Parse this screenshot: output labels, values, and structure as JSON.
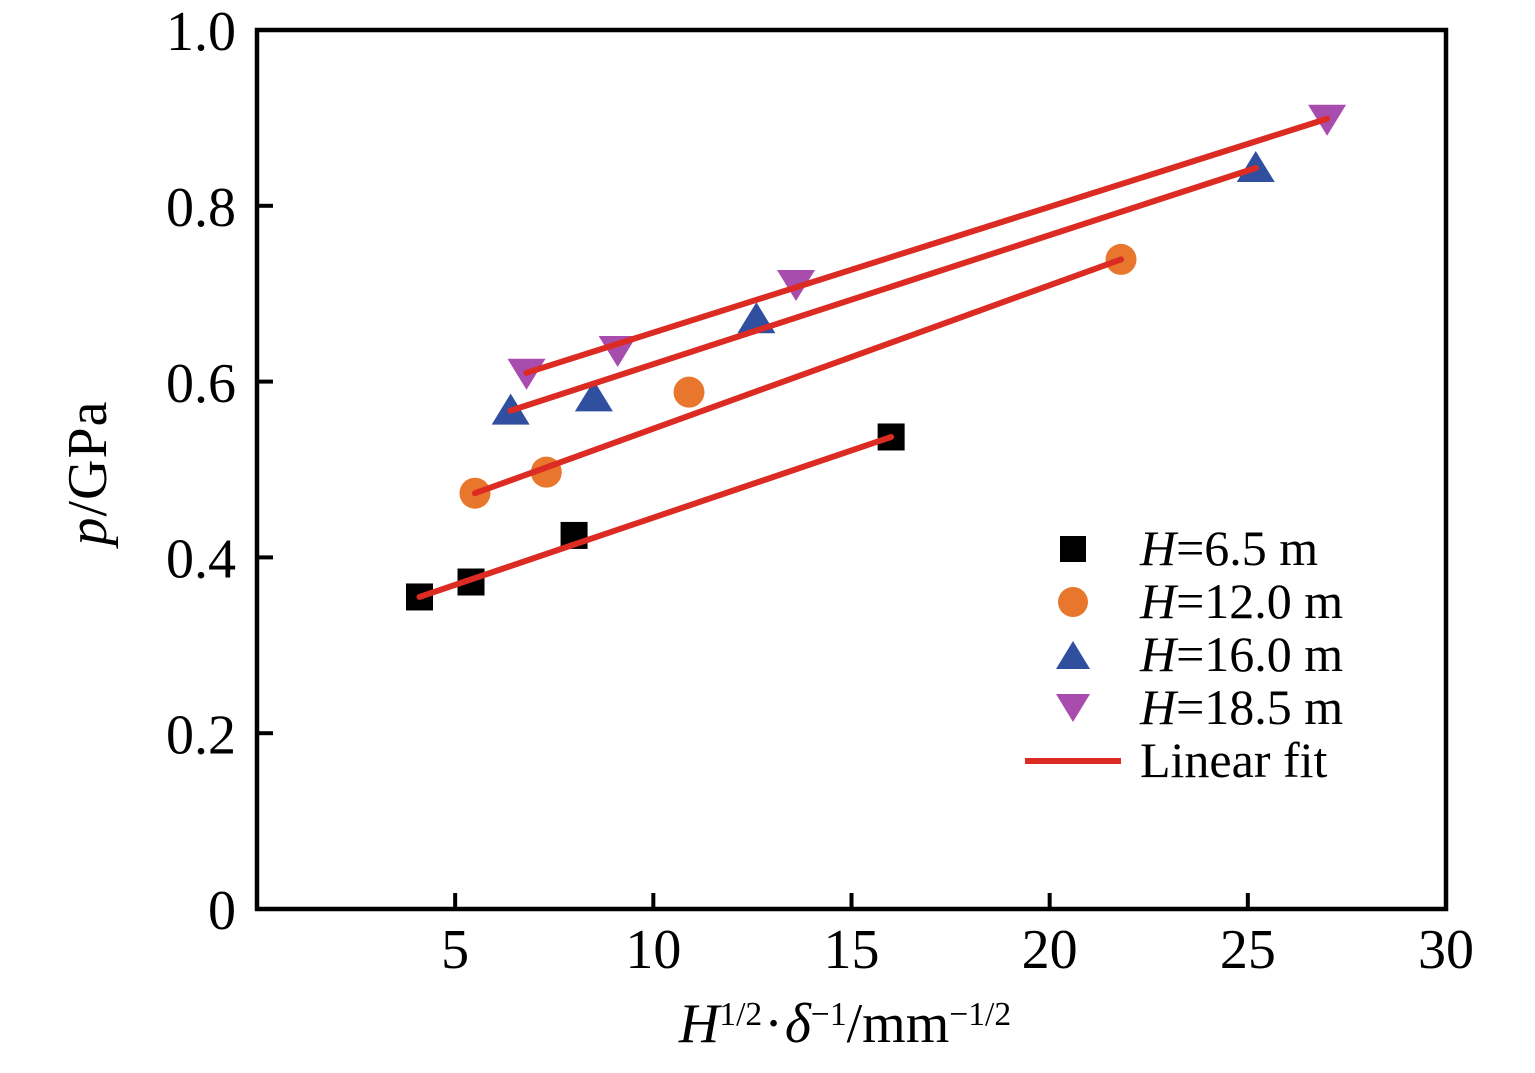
{
  "figure": {
    "background": "#ffffff",
    "frame_color": "#000000"
  },
  "axes": {
    "y_label": {
      "var": "p",
      "rest": "/GPa"
    },
    "x_label": {
      "p1": "H",
      "p2": "1/2",
      "p3": "·",
      "p4": "δ",
      "p5": "−1",
      "p6": "/mm",
      "p7": "−1/2"
    }
  },
  "legend": {
    "entries": [
      {
        "var": "H",
        "rest": "=6.5 m",
        "marker": "square",
        "color": "#000000"
      },
      {
        "var": "H",
        "rest": "=12.0 m",
        "marker": "circle",
        "color": "#E8762C"
      },
      {
        "var": "H",
        "rest": "=16.0 m",
        "marker": "triangle-up",
        "color": "#30509F"
      },
      {
        "var": "H",
        "rest": "=18.5 m",
        "marker": "triangle-down",
        "color": "#A84CAE"
      },
      {
        "var": "",
        "rest": "Linear fit",
        "marker": "line",
        "color": "#DC2B23"
      }
    ]
  },
  "chart_data": {
    "type": "scatter",
    "title": "",
    "xlabel": "H^{1/2}·δ^{−1}/mm^{−1/2}",
    "ylabel": "p/GPa",
    "xlim": [
      0,
      30
    ],
    "ylim": [
      0,
      1.0
    ],
    "x_ticks": [
      5,
      10,
      15,
      20,
      25,
      30
    ],
    "y_ticks": [
      0,
      0.2,
      0.4,
      0.6,
      0.8,
      1.0
    ],
    "y_tick_labels": [
      "0",
      "0.2",
      "0.4",
      "0.6",
      "0.8",
      "1.0"
    ],
    "grid": false,
    "legend_position": "inside lower right",
    "fit_color": "#DC2B23",
    "fit_label": "Linear fit",
    "series": [
      {
        "name": "H=6.5 m",
        "marker": "square",
        "color": "#000000",
        "x": [
          4.1,
          5.4,
          8.0,
          16.0
        ],
        "y": [
          0.355,
          0.372,
          0.425,
          0.537
        ],
        "fit": {
          "x": [
            4.1,
            16.0
          ],
          "y": [
            0.355,
            0.537
          ]
        }
      },
      {
        "name": "H=12.0 m",
        "marker": "circle",
        "color": "#E8762C",
        "x": [
          5.5,
          7.3,
          10.9,
          21.8
        ],
        "y": [
          0.473,
          0.497,
          0.588,
          0.739
        ],
        "fit": {
          "x": [
            5.5,
            21.8
          ],
          "y": [
            0.473,
            0.739
          ]
        }
      },
      {
        "name": "H=16.0 m",
        "marker": "triangle-up",
        "color": "#30509F",
        "x": [
          6.4,
          8.5,
          12.6,
          25.2
        ],
        "y": [
          0.567,
          0.582,
          0.671,
          0.843
        ],
        "fit": {
          "x": [
            6.4,
            25.2
          ],
          "y": [
            0.567,
            0.843
          ]
        }
      },
      {
        "name": "H=18.5 m",
        "marker": "triangle-down",
        "color": "#A84CAE",
        "x": [
          6.8,
          9.1,
          13.6,
          27.0
        ],
        "y": [
          0.61,
          0.636,
          0.711,
          0.899
        ],
        "fit": {
          "x": [
            6.8,
            27.0
          ],
          "y": [
            0.61,
            0.899
          ]
        }
      }
    ]
  }
}
